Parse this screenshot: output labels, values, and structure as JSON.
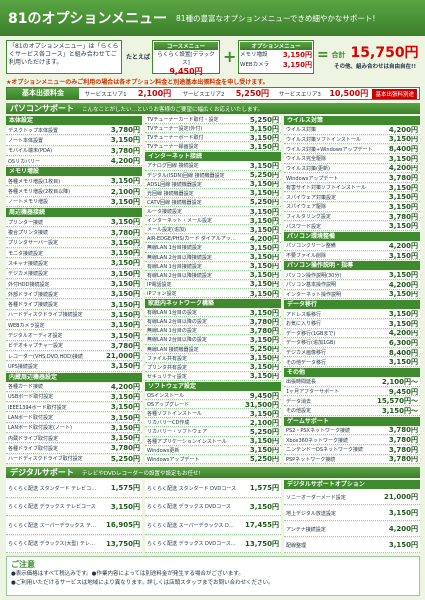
{
  "header": {
    "title": "81のオプションメニュー",
    "subtitle": "81種の豊富なオプションメニューできめ細やかなサポート!"
  },
  "intro": {
    "text": "「81のオプションメニュー」は「らくらくサービス各コース」と組み合わせてご利用いただけます。",
    "example_label": "たとえば",
    "course": {
      "label": "コースメニュー",
      "name": "らくらく設置[デラックス]",
      "price": "9,450円"
    },
    "options": {
      "label": "オプションメニュー",
      "items": [
        {
          "name": "メモリ増設",
          "price": "3,150円"
        },
        {
          "name": "WEBカメラ",
          "price": "3,150円"
        }
      ]
    },
    "total": {
      "label": "合計",
      "price": "15,750円",
      "note": "その他、組み合わせは自由自在!!"
    }
  },
  "notice": "★オプションメニューのみご利用の場合は各オプション料金と別途基本出張料金を申し受けます。",
  "base_fee": {
    "title": "基本出張料金",
    "areas": [
      {
        "name": "サービスエリア1",
        "price": "2,100円"
      },
      {
        "name": "サービスエリア2",
        "price": "5,250円"
      },
      {
        "name": "サービスエリア3",
        "price": "10,500円"
      }
    ],
    "note": "基本出張料別途"
  },
  "pc_support": {
    "title": "パソコンサポート",
    "note": "こんなことがしたい…というお客様のご要望に幅広くお応えいたします。",
    "columns": [
      [
        {
          "title": "本体設定",
          "items": [
            [
              "デスクトップ本体設置",
              "3,780円"
            ],
            [
              "ノート本体設置",
              "3,150円"
            ],
            [
              "モバイル端末(PDA)",
              "3,780円"
            ],
            [
              "OSリカバリー",
              "4,200円"
            ]
          ]
        },
        {
          "title": "メモリ増設",
          "items": [
            [
              "各種メモリ増設(1枚目)",
              "3,150円"
            ],
            [
              "各種メモリ増設(2枚目以降)",
              "2,100円"
            ],
            [
              "ノートメモリ増設",
              "3,150円"
            ]
          ]
        },
        {
          "title": "周辺機器接続",
          "items": [
            [
              "プリンター接続",
              "3,150円"
            ],
            [
              "複合プリンタ接続",
              "3,780円"
            ],
            [
              "プリンタサーバー設定",
              "3,150円"
            ],
            [
              "モニタ接続設定",
              "3,150円"
            ],
            [
              "スキャナ接続設定",
              "3,150円"
            ],
            [
              "デジカメ接続設定",
              "3,150円"
            ],
            [
              "外付HDD接続設定",
              "3,150円"
            ],
            [
              "外部ドライブ接続設定",
              "3,150円"
            ],
            [
              "各種ドライブ接続設定",
              "3,150円"
            ],
            [
              "ハードディスクドライブ接続設定",
              "3,150円"
            ],
            [
              "WEBカメラ設定",
              "3,150円"
            ],
            [
              "デジタルオーディオ設定",
              "3,150円"
            ],
            [
              "ビデオキャプチャー設定",
              "3,780円"
            ],
            [
              "レコーダー(VHS,DVD,HDD)接続",
              "21,000円"
            ],
            [
              "UPS接続設定",
              "3,150円"
            ]
          ]
        },
        {
          "title": "内蔵周辺機器設定",
          "items": [
            [
              "各種カード接続",
              "4,200円"
            ],
            [
              "USBボード取付設定",
              "3,150円"
            ],
            [
              "IEEE1394ボード取付設定",
              "3,150円"
            ],
            [
              "LANボード取付設定",
              "3,150円"
            ],
            [
              "LANボード取付設定(ノート)",
              "3,150円"
            ],
            [
              "内蔵ドライブ取付設定",
              "3,150円"
            ],
            [
              "各種ドライブ取付設定",
              "3,780円"
            ],
            [
              "ハードディスクドライブ取付設定",
              "5,250円"
            ]
          ]
        }
      ],
      [
        {
          "items": [
            [
              "TVチューナーカード取付・設定",
              "5,250円"
            ],
            [
              "TVチューナー設定(外付)",
              "3,150円"
            ],
            [
              "TVチューナーボード取付",
              "3,150円"
            ],
            [
              "TVチューナー録画設定",
              "3,150円"
            ]
          ]
        },
        {
          "title": "インターネット接続",
          "items": [
            [
              "アナログ回線 接続設定",
              "3,150円"
            ],
            [
              "デジタル(ISDN)回線 接続機器設定",
              "5,250円"
            ],
            [
              "ADSL回線 接続機器設定",
              "3,150円"
            ],
            [
              "光回線 接続機器設定",
              "3,150円"
            ],
            [
              "CATV回線 接続機器設定",
              "5,250円"
            ],
            [
              "ルータ接続設定",
              "3,150円"
            ],
            [
              "インターネット・メール設定",
              "3,150円"
            ],
            [
              "メール設定(追加)",
              "3,150円"
            ],
            [
              "AIR-EDGE/PHS/カード ダイアルアップ設定",
              "4,200円"
            ],
            [
              "無線LAN 1台目接続設定",
              "3,150円"
            ],
            [
              "無線LAN 2台目以降接続設定",
              "3,150円"
            ],
            [
              "有線LAN 1台目接続設定",
              "3,150円"
            ],
            [
              "有線LAN 2台目以降接続設定",
              "3,150円"
            ],
            [
              "IP電話設定",
              "3,150円"
            ],
            [
              "IPフォン設定",
              "3,150円"
            ]
          ]
        },
        {
          "title": "家庭内ネットワーク構築",
          "items": [
            [
              "有線LAN 1台目の設定",
              "3,150円"
            ],
            [
              "有線LAN 2台目以降の設定",
              "3,780円"
            ],
            [
              "無線LAN 1台目の設定",
              "3,780円"
            ],
            [
              "無線LAN 2台目以降の設定",
              "3,150円"
            ],
            [
              "無線LAN 接続機器設定",
              "5,250円"
            ],
            [
              "ファイル共有設定",
              "3,150円"
            ],
            [
              "プリンタ共有設定",
              "3,150円"
            ],
            [
              "セキュリティ設定",
              "3,150円"
            ]
          ]
        },
        {
          "title": "ソフトウェア設定",
          "items": [
            [
              "OSインストール",
              "9,450円"
            ],
            [
              "OSアップグレード",
              "31,500円"
            ],
            [
              "各種ソフトインストール",
              "3,150円"
            ],
            [
              "リカバリーCD作成",
              "2,100円"
            ],
            [
              "リカバリー・ソフトウェア",
              "5,250円"
            ],
            [
              "各種アプリケーションインストール",
              "3,150円"
            ],
            [
              "Windows更新",
              "3,150円"
            ],
            [
              "Windowsアップデート",
              "5,250円"
            ]
          ]
        }
      ],
      [
        {
          "title": "ウイルス対策",
          "items": [
            [
              "ウイルス対策",
              "4,200円"
            ],
            [
              "ウイルス対策ソフトインストール",
              "3,150円"
            ],
            [
              "ウイルス対策+Windowsアップデート",
              "8,400円"
            ],
            [
              "ウイルス完全駆除",
              "3,150円"
            ],
            [
              "ウイルス対策(更新)",
              "4,200円"
            ],
            [
              "Windowsアップデート",
              "3,780円"
            ],
            [
              "有害サイト対策ソフトインストール",
              "3,150円"
            ],
            [
              "スパイウェア対策設定",
              "3,150円"
            ],
            [
              "スパイウェア駆除",
              "3,150円"
            ],
            [
              "フィルタリング設定",
              "3,780円"
            ],
            [
              "パスワード設定",
              "3,150円"
            ]
          ]
        },
        {
          "title": "パソコン環境整備",
          "items": [
            [
              "パソコンクリーン整備",
              "4,200円"
            ],
            [
              "不要ファイル削除",
              "3,150円"
            ]
          ]
        },
        {
          "title": "パソコン操作説明・指導",
          "items": [
            [
              "パソコン操作説明(30分)",
              "3,150円"
            ],
            [
              "パソコン基本操作説明",
              "4,200円"
            ],
            [
              "インターネット操作説明",
              "3,150円"
            ]
          ]
        },
        {
          "title": "データ移行",
          "items": [
            [
              "アドレス帳移行",
              "3,150円"
            ],
            [
              "お気に入り移行",
              "3,150円"
            ],
            [
              "データ移行(1GBまで)",
              "4,200円"
            ],
            [
              "データ移行(追加1GB)",
              "6,300円"
            ],
            [
              "デジカメ画像移行",
              "8,400円"
            ],
            [
              "その他データ移行",
              "3,150円"
            ]
          ]
        },
        {
          "title": "その他",
          "items": [
            [
              "出張時間延長",
              "2,100円〜"
            ],
            [
              "1ヶ月アフターサポート",
              "9,450円"
            ],
            [
              "データ消去",
              "15,570円〜"
            ],
            [
              "その他設定",
              "3,150円〜"
            ]
          ]
        },
        {
          "title": "ゲームサポート",
          "items": [
            [
              "PS2・PSXネットワーク接続",
              "3,780円"
            ],
            [
              "Xbox360ネットワーク接続",
              "3,780円"
            ],
            [
              "ニンテンドーDSネットワーク接続",
              "3,780円"
            ],
            [
              "PSPネットワーク接続",
              "3,780円"
            ]
          ]
        }
      ]
    ]
  },
  "digital_support": {
    "title": "デジタルサポート",
    "note": "テレビやDVDレコーダーの設置や設定もお任せ!",
    "columns": [
      [
        {
          "items": [
            [
              "らくらく配送 スタンダード テレビコース",
              "1,575円"
            ],
            [
              "らくらく配送 デラックス テレビコース",
              "3,150円"
            ],
            [
              "らくらく配送 スーパーデラックス テレビコース",
              "16,905円"
            ],
            [
              "らくらく配送 デラックス(大型) テレビコース",
              "13,750円"
            ]
          ]
        }
      ],
      [
        {
          "items": [
            [
              "らくらく配送 スタンダード DVDコース",
              "1,575円"
            ],
            [
              "らくらく配送 デラックス DVDコース",
              "3,150円"
            ],
            [
              "らくらく配送 スーパーデラックス DVDコース",
              "17,455円"
            ],
            [
              "らくらく配送 デラックス DVDコース(大型)",
              "13,750円"
            ]
          ]
        }
      ],
      [
        {
          "title": "デジタルサポートオプション",
          "items": [
            [
              "ソニーオーダーメード設定",
              "21,000円"
            ],
            [
              "地上デジタル放送設定",
              "3,150円"
            ],
            [
              "アンテナ接続設定",
              "4,200円"
            ],
            [
              "配線整理",
              "3,150円"
            ]
          ]
        }
      ]
    ]
  },
  "footer": {
    "title": "ご注意",
    "lines": [
      "●表示価格はすべて税込みです。●作業内容によっては別途料金が発生する場合がございます。",
      "●ご利用いただけるサービスは地域により異なります。詳しくは店頭スタッフまでお問い合わせください。"
    ]
  }
}
